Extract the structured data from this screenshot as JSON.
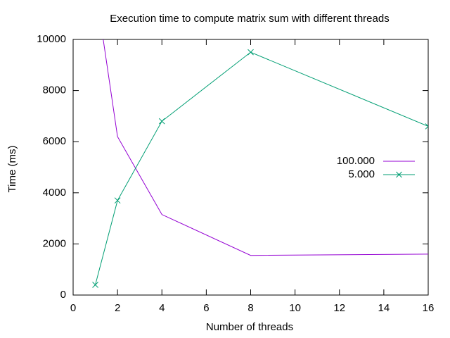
{
  "chart_data": {
    "type": "line",
    "title": "Execution time to compute matrix sum with different threads",
    "x_label": "Number of threads",
    "y_label": "Time (ms)",
    "xlim": [
      0,
      16
    ],
    "xticks": [
      0,
      2,
      4,
      6,
      8,
      10,
      12,
      14,
      16
    ],
    "ylim": [
      0,
      10000
    ],
    "yticks": [
      0,
      2000,
      4000,
      6000,
      8000,
      10000
    ],
    "grid": false,
    "legend": "right",
    "series": [
      {
        "name": "100.000",
        "color": "#9400d3",
        "marker": "none",
        "x": [
          1,
          2,
          4,
          8,
          16
        ],
        "values": [
          12100,
          6200,
          3150,
          1550,
          1600
        ]
      },
      {
        "name": "5.000",
        "color": "#009e73",
        "marker": "x",
        "x": [
          1,
          2,
          4,
          8,
          16
        ],
        "values": [
          400,
          3700,
          6800,
          9500,
          6600
        ]
      }
    ]
  }
}
